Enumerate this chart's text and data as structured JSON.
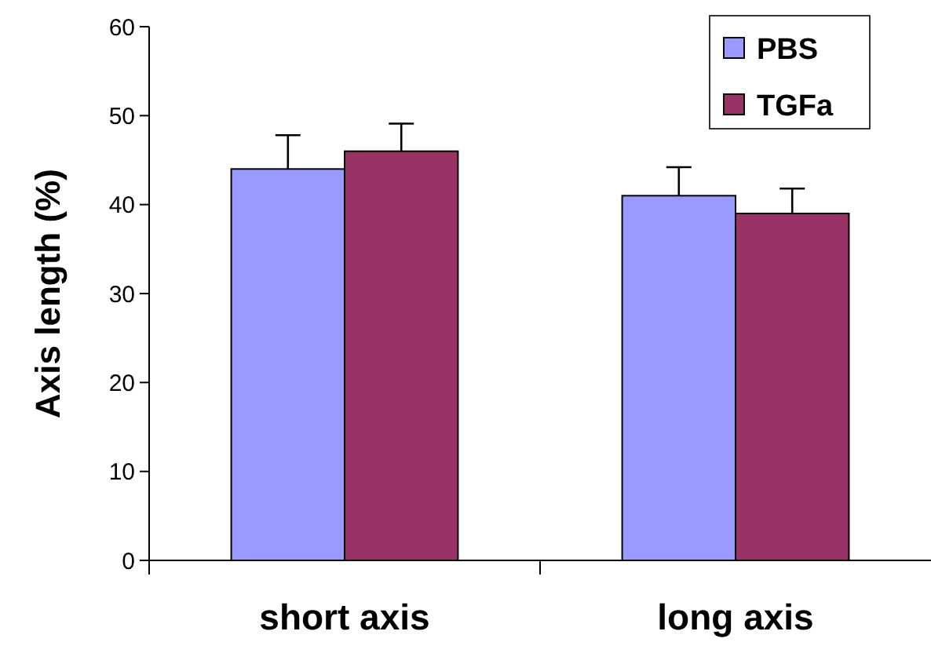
{
  "chart_data": {
    "type": "bar",
    "ylabel": "Axis length (%)",
    "categories": [
      "short axis",
      "long axis"
    ],
    "series": [
      {
        "name": "PBS",
        "color": "#9999ff",
        "values": [
          44,
          41
        ],
        "errors": [
          [
            44,
            47.8
          ],
          [
            41,
            44.2
          ]
        ]
      },
      {
        "name": "TGFa",
        "color": "#993366",
        "values": [
          46,
          39
        ],
        "errors": [
          [
            46,
            49.1
          ],
          [
            39,
            41.8
          ]
        ]
      }
    ],
    "ylim": [
      0,
      60
    ],
    "yticks": [
      0,
      10,
      20,
      30,
      40,
      50,
      60
    ],
    "grid": false,
    "legend": "top right"
  }
}
